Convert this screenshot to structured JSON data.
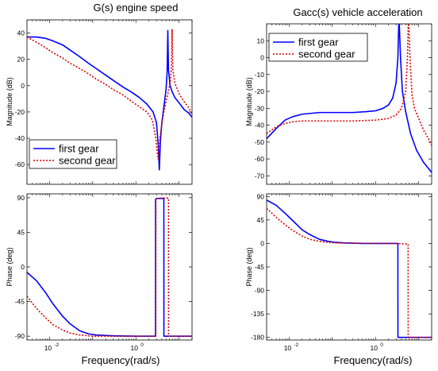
{
  "chart_data": [
    {
      "type": "line",
      "title": "G(s) engine speed",
      "ylabel": "Magnitude (dB)",
      "xlabel": "",
      "xscale": "log",
      "xlim": [
        0.003,
        20
      ],
      "ylim": [
        -75,
        50
      ],
      "yticks": [
        "40",
        "20",
        "0",
        "-20",
        "-40",
        "-60"
      ],
      "ytick_values": [
        40,
        20,
        0,
        -20,
        -40,
        -60
      ],
      "legend": {
        "position": "bottom-left",
        "entries": [
          "first gear",
          "second gear"
        ]
      },
      "series": [
        {
          "name": "first gear",
          "color": "#0000ff",
          "style": "solid",
          "points": [
            [
              0.003,
              37
            ],
            [
              0.005,
              37
            ],
            [
              0.008,
              36
            ],
            [
              0.012,
              34
            ],
            [
              0.02,
              31
            ],
            [
              0.03,
              27
            ],
            [
              0.05,
              22
            ],
            [
              0.08,
              17
            ],
            [
              0.12,
              13
            ],
            [
              0.2,
              8
            ],
            [
              0.3,
              4
            ],
            [
              0.5,
              -1
            ],
            [
              0.8,
              -5
            ],
            [
              1.2,
              -9
            ],
            [
              1.8,
              -14
            ],
            [
              2.5,
              -20
            ],
            [
              3.0,
              -28
            ],
            [
              3.3,
              -45
            ],
            [
              3.5,
              -64
            ],
            [
              3.7,
              -42
            ],
            [
              4.0,
              -28
            ],
            [
              4.5,
              -15
            ],
            [
              5.0,
              -3
            ],
            [
              5.3,
              10
            ],
            [
              5.5,
              42
            ],
            [
              5.7,
              12
            ],
            [
              6.2,
              0
            ],
            [
              7.0,
              -5
            ],
            [
              8,
              -9
            ],
            [
              10,
              -13
            ],
            [
              13,
              -18
            ],
            [
              17,
              -21
            ],
            [
              20,
              -24
            ]
          ]
        },
        {
          "name": "second gear",
          "color": "#dd0000",
          "style": "dotted",
          "points": [
            [
              0.003,
              37
            ],
            [
              0.005,
              33
            ],
            [
              0.008,
              29
            ],
            [
              0.012,
              25
            ],
            [
              0.02,
              21
            ],
            [
              0.03,
              17
            ],
            [
              0.05,
              13
            ],
            [
              0.08,
              9
            ],
            [
              0.12,
              5
            ],
            [
              0.2,
              1
            ],
            [
              0.3,
              -3
            ],
            [
              0.5,
              -7
            ],
            [
              0.8,
              -12
            ],
            [
              1.2,
              -16
            ],
            [
              1.8,
              -20
            ],
            [
              2.4,
              -26
            ],
            [
              2.9,
              -40
            ],
            [
              3.1,
              -50
            ],
            [
              3.3,
              -56
            ],
            [
              3.6,
              -40
            ],
            [
              4.2,
              -24
            ],
            [
              5.0,
              -12
            ],
            [
              5.8,
              -3
            ],
            [
              6.3,
              4
            ],
            [
              6.7,
              15
            ],
            [
              6.9,
              43
            ],
            [
              7.2,
              12
            ],
            [
              8,
              2
            ],
            [
              10,
              -6
            ],
            [
              13,
              -12
            ],
            [
              17,
              -17
            ],
            [
              20,
              -22
            ]
          ]
        }
      ]
    },
    {
      "type": "line",
      "title": "",
      "ylabel": "Phase (deg)",
      "xlabel": "Frequency(rad/s)",
      "xscale": "log",
      "xlim": [
        0.003,
        20
      ],
      "ylim": [
        -95,
        95
      ],
      "xticks": [
        "10",
        "10"
      ],
      "xtick_exponents": [
        "-2",
        "0"
      ],
      "xtick_values": [
        0.01,
        1
      ],
      "yticks": [
        "90",
        "45",
        "0",
        "-45",
        "-90"
      ],
      "ytick_values": [
        90,
        45,
        0,
        -45,
        -90
      ],
      "series": [
        {
          "name": "first gear",
          "color": "#0000ff",
          "style": "solid",
          "points": [
            [
              0.003,
              -7
            ],
            [
              0.005,
              -18
            ],
            [
              0.008,
              -33
            ],
            [
              0.012,
              -48
            ],
            [
              0.02,
              -64
            ],
            [
              0.03,
              -74
            ],
            [
              0.05,
              -83
            ],
            [
              0.08,
              -87
            ],
            [
              0.12,
              -88.5
            ],
            [
              0.3,
              -89.5
            ],
            [
              1,
              -90
            ],
            [
              2,
              -90
            ],
            [
              2.85,
              -90
            ],
            [
              2.86,
              88
            ],
            [
              3.0,
              89
            ],
            [
              4.0,
              89
            ],
            [
              4.45,
              89
            ],
            [
              4.46,
              -90
            ],
            [
              6,
              -90
            ],
            [
              10,
              -90
            ],
            [
              20,
              -90
            ]
          ]
        },
        {
          "name": "second gear",
          "color": "#dd0000",
          "style": "dotted",
          "points": [
            [
              0.003,
              -38
            ],
            [
              0.005,
              -54
            ],
            [
              0.008,
              -66
            ],
            [
              0.012,
              -75
            ],
            [
              0.02,
              -82
            ],
            [
              0.03,
              -86
            ],
            [
              0.05,
              -88.5
            ],
            [
              0.1,
              -90
            ],
            [
              1,
              -90
            ],
            [
              2,
              -90
            ],
            [
              2.9,
              -90
            ],
            [
              2.91,
              89
            ],
            [
              4,
              89.5
            ],
            [
              5.7,
              89.5
            ],
            [
              5.71,
              -90
            ],
            [
              10,
              -90
            ],
            [
              20,
              -90
            ]
          ]
        }
      ]
    },
    {
      "type": "line",
      "title": "Gacc(s) vehicle acceleration",
      "ylabel": "Magnitude (dB)",
      "xlabel": "",
      "xscale": "log",
      "xlim": [
        0.003,
        20
      ],
      "ylim": [
        -75,
        20
      ],
      "yticks": [
        "10",
        "0",
        "-10",
        "-20",
        "-30",
        "-40",
        "-50",
        "-60",
        "-70"
      ],
      "ytick_values": [
        10,
        0,
        -10,
        -20,
        -30,
        -40,
        -50,
        -60,
        -70
      ],
      "legend": {
        "position": "top-left",
        "entries": [
          "first gear",
          "second gear"
        ]
      },
      "series": [
        {
          "name": "first gear",
          "color": "#0000ff",
          "style": "solid",
          "points": [
            [
              0.003,
              -48
            ],
            [
              0.005,
              -42
            ],
            [
              0.008,
              -37
            ],
            [
              0.012,
              -35
            ],
            [
              0.02,
              -33.5
            ],
            [
              0.05,
              -32.5
            ],
            [
              0.1,
              -32.5
            ],
            [
              0.3,
              -32.5
            ],
            [
              0.6,
              -32
            ],
            [
              1,
              -31.5
            ],
            [
              1.5,
              -30
            ],
            [
              2,
              -28
            ],
            [
              2.5,
              -24
            ],
            [
              3.0,
              -15
            ],
            [
              3.3,
              0
            ],
            [
              3.5,
              25
            ],
            [
              3.8,
              0
            ],
            [
              4.2,
              -20
            ],
            [
              5,
              -32
            ],
            [
              6.5,
              -45
            ],
            [
              9,
              -55
            ],
            [
              13,
              -62
            ],
            [
              20,
              -68
            ]
          ]
        },
        {
          "name": "second gear",
          "color": "#dd0000",
          "style": "dotted",
          "points": [
            [
              0.003,
              -45
            ],
            [
              0.005,
              -41
            ],
            [
              0.008,
              -39
            ],
            [
              0.012,
              -38
            ],
            [
              0.02,
              -37.5
            ],
            [
              0.05,
              -37.5
            ],
            [
              0.1,
              -37.5
            ],
            [
              0.3,
              -37.5
            ],
            [
              1,
              -37
            ],
            [
              2,
              -36
            ],
            [
              3,
              -34
            ],
            [
              4,
              -30
            ],
            [
              5,
              -20
            ],
            [
              5.5,
              0
            ],
            [
              5.8,
              25
            ],
            [
              6.3,
              0
            ],
            [
              7,
              -22
            ],
            [
              8,
              -30
            ],
            [
              10,
              -36
            ],
            [
              13,
              -43
            ],
            [
              17,
              -48
            ],
            [
              20,
              -52
            ]
          ]
        }
      ]
    },
    {
      "type": "line",
      "title": "",
      "ylabel": "Phase (deg)",
      "xlabel": "Frequency(rad/s)",
      "xscale": "log",
      "xlim": [
        0.003,
        20
      ],
      "ylim": [
        -185,
        95
      ],
      "xticks": [
        "10",
        "10"
      ],
      "xtick_exponents": [
        "-2",
        "0"
      ],
      "xtick_values": [
        0.01,
        1
      ],
      "yticks": [
        "90",
        "45",
        "0",
        "-45",
        "-90",
        "-135",
        "-180"
      ],
      "ytick_values": [
        90,
        45,
        0,
        -45,
        -90,
        -135,
        -180
      ],
      "series": [
        {
          "name": "first gear",
          "color": "#0000ff",
          "style": "solid",
          "points": [
            [
              0.003,
              83
            ],
            [
              0.005,
              73
            ],
            [
              0.008,
              58
            ],
            [
              0.012,
              44
            ],
            [
              0.02,
              26
            ],
            [
              0.03,
              17
            ],
            [
              0.05,
              8
            ],
            [
              0.08,
              4
            ],
            [
              0.12,
              2
            ],
            [
              0.2,
              1
            ],
            [
              0.5,
              0
            ],
            [
              1,
              0
            ],
            [
              2,
              0
            ],
            [
              3.3,
              0
            ],
            [
              3.31,
              -180
            ],
            [
              10,
              -180
            ],
            [
              20,
              -180
            ]
          ]
        },
        {
          "name": "second gear",
          "color": "#dd0000",
          "style": "dotted",
          "points": [
            [
              0.003,
              67
            ],
            [
              0.005,
              50
            ],
            [
              0.008,
              36
            ],
            [
              0.012,
              25
            ],
            [
              0.02,
              14
            ],
            [
              0.03,
              8
            ],
            [
              0.05,
              4
            ],
            [
              0.08,
              2
            ],
            [
              0.12,
              1
            ],
            [
              0.3,
              0.5
            ],
            [
              1,
              0
            ],
            [
              3,
              0
            ],
            [
              5.5,
              -1
            ],
            [
              5.7,
              -1
            ],
            [
              5.71,
              -180
            ],
            [
              10,
              -180
            ],
            [
              20,
              -180
            ]
          ]
        }
      ]
    }
  ]
}
